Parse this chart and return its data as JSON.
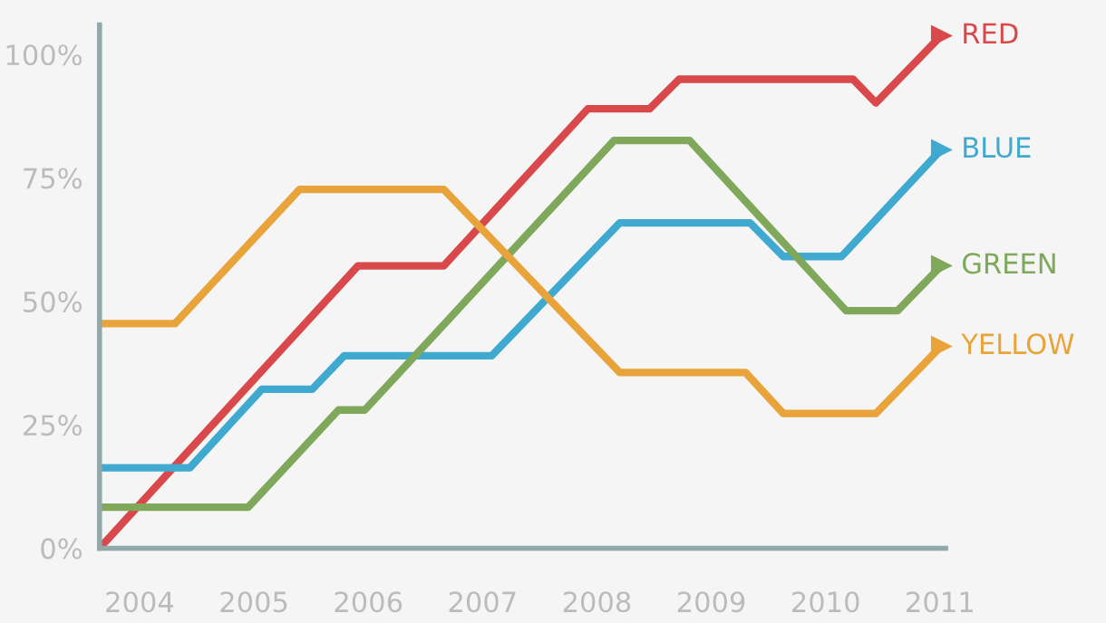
{
  "chart_data": {
    "type": "line",
    "xlim": [
      2003.65,
      2011.05
    ],
    "ylim": [
      0,
      106
    ],
    "xticks": [
      2004,
      2005,
      2006,
      2007,
      2008,
      2009,
      2010,
      2011
    ],
    "yticks": [
      {
        "value": 0,
        "label": "0%"
      },
      {
        "value": 25,
        "label": "25%"
      },
      {
        "value": 50,
        "label": "50%"
      },
      {
        "value": 75,
        "label": "75%"
      },
      {
        "value": 100,
        "label": "100%"
      }
    ],
    "grid": false,
    "legend": false,
    "marker": "none",
    "line_style": "solid",
    "series": [
      {
        "name": "RED",
        "color": "#d9484a",
        "x": [
          2003.65,
          2005.91,
          2006.66,
          2007.92,
          2008.46,
          2008.72,
          2010.24,
          2010.44,
          2011.01
        ],
        "values": [
          0,
          57.2,
          57.2,
          89,
          89,
          95,
          95,
          90.2,
          103.8
        ]
      },
      {
        "name": "BLUE",
        "color": "#3fa9d0",
        "x": [
          2003.65,
          2004.44,
          2005.07,
          2005.51,
          2005.79,
          2007.08,
          2008.2,
          2009.34,
          2009.63,
          2010.14,
          2011.01
        ],
        "values": [
          16.3,
          16.3,
          32.2,
          32.2,
          39,
          39,
          65.9,
          65.9,
          59.1,
          59.1,
          80.7
        ]
      },
      {
        "name": "GREEN",
        "color": "#7fa85a",
        "x": [
          2003.65,
          2004.95,
          2005.74,
          2005.97,
          2008.15,
          2008.81,
          2010.18,
          2010.63,
          2011.01
        ],
        "values": [
          8.3,
          8.3,
          28,
          28,
          82.6,
          82.6,
          48.1,
          48.1,
          57.2
        ]
      },
      {
        "name": "YELLOW",
        "color": "#e8a43a",
        "x": [
          2003.65,
          2004.31,
          2005.4,
          2006.66,
          2008.2,
          2009.3,
          2009.63,
          2010.44,
          2011.01
        ],
        "values": [
          45.5,
          45.5,
          72.7,
          72.7,
          35.6,
          35.6,
          27.3,
          27.3,
          40.9
        ]
      }
    ]
  }
}
